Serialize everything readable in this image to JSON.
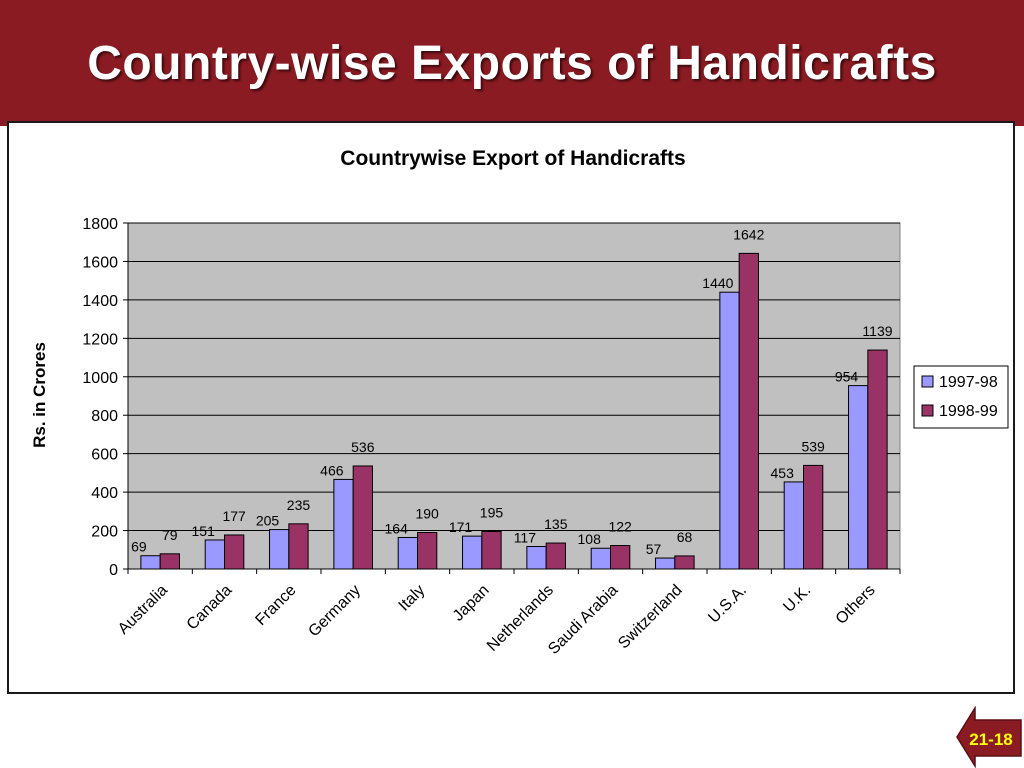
{
  "slide": {
    "title": "Country-wise Exports of Handicrafts",
    "page_number": "21-18"
  },
  "colors": {
    "header": "#8a1b22",
    "plot_area": "#c0c0c0",
    "series_1997": "#9999ff",
    "series_1998": "#993366"
  },
  "chart_data": {
    "type": "bar",
    "title": "Countrywise Export of Handicrafts",
    "xlabel": "",
    "ylabel": "Rs. in Crores",
    "ylim": [
      0,
      1800
    ],
    "yticks": [
      0,
      200,
      400,
      600,
      800,
      1000,
      1200,
      1400,
      1600,
      1800
    ],
    "grid": true,
    "legend_position": "right",
    "categories": [
      "Australia",
      "Canada",
      "France",
      "Germany",
      "Italy",
      "Japan",
      "Netherlands",
      "Saudi Arabia",
      "Switzerland",
      "U.S.A.",
      "U.K.",
      "Others"
    ],
    "series": [
      {
        "name": "1997-98",
        "color": "#9999ff",
        "values": [
          69,
          151,
          205,
          466,
          164,
          171,
          117,
          108,
          57,
          1440,
          453,
          954
        ]
      },
      {
        "name": "1998-99",
        "color": "#993366",
        "values": [
          79,
          177,
          235,
          536,
          190,
          195,
          135,
          122,
          68,
          1642,
          539,
          1139
        ]
      }
    ]
  }
}
